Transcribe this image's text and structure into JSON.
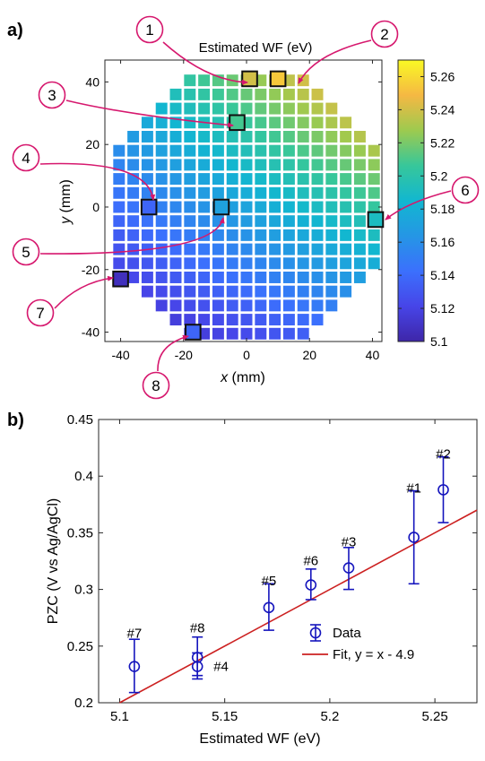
{
  "panel_a": {
    "label": "a)",
    "title": "Estimated WF (eV)",
    "xlabel_var": "x",
    "xlabel_unit": " (mm)",
    "ylabel_var": "y",
    "ylabel_unit": " (mm)",
    "xticks": [
      "-40",
      "-20",
      "0",
      "20",
      "40"
    ],
    "yticks": [
      "40",
      "20",
      "0",
      "-20",
      "-40"
    ],
    "colorbar_ticks": [
      "5.26",
      "5.24",
      "5.22",
      "5.2",
      "5.18",
      "5.16",
      "5.14",
      "5.12",
      "5.1"
    ],
    "callouts": [
      "1",
      "2",
      "3",
      "4",
      "5",
      "6",
      "7",
      "8"
    ]
  },
  "panel_b": {
    "label": "b)",
    "xlabel": "Estimated WF (eV)",
    "ylabel": "PZC (V vs Ag/AgCl)",
    "xticks": [
      "5.1",
      "5.15",
      "5.2",
      "5.25"
    ],
    "yticks": [
      "0.45",
      "0.4",
      "0.35",
      "0.3",
      "0.25",
      "0.2"
    ],
    "legend_data": "Data",
    "legend_fit": "Fit, y = x - 4.9"
  },
  "chart_data": [
    {
      "type": "heatmap",
      "title": "Estimated WF (eV)",
      "xlabel": "x (mm)",
      "ylabel": "y (mm)",
      "xlim": [
        -45,
        43
      ],
      "ylim": [
        -43,
        47
      ],
      "color_range": [
        5.1,
        5.27
      ],
      "colormap": "parula",
      "wafer_diameter_mm": 90,
      "pixel_pitch_mm": 4.5,
      "highlighted_sites": [
        {
          "label": "1",
          "x": 1,
          "y": 41,
          "value": 5.24
        },
        {
          "label": "2",
          "x": 10,
          "y": 41,
          "value": 5.254
        },
        {
          "label": "3",
          "x": -3,
          "y": 27,
          "value": 5.209
        },
        {
          "label": "4",
          "x": -31,
          "y": 0,
          "value": 5.137
        },
        {
          "label": "5",
          "x": -8,
          "y": 0,
          "value": 5.171
        },
        {
          "label": "6",
          "x": 41,
          "y": -4,
          "value": 5.191
        },
        {
          "label": "7",
          "x": -40,
          "y": -23,
          "value": 5.107
        },
        {
          "label": "8",
          "x": -17,
          "y": -40,
          "value": 5.137
        }
      ]
    },
    {
      "type": "scatter",
      "xlabel": "Estimated WF (eV)",
      "ylabel": "PZC (V vs Ag/AgCl)",
      "xlim": [
        5.09,
        5.27
      ],
      "ylim": [
        0.2,
        0.45
      ],
      "legend": "bottom-right",
      "series": [
        {
          "name": "Data",
          "color": "#1515bd",
          "points": [
            {
              "label": "#7",
              "x": 5.107,
              "y": 0.232,
              "err_low": 0.209,
              "err_high": 0.256
            },
            {
              "label": "#8",
              "x": 5.137,
              "y": 0.24,
              "err_low": 0.224,
              "err_high": 0.258
            },
            {
              "label": "#4",
              "x": 5.137,
              "y": 0.232,
              "err_low": 0.221,
              "err_high": 0.244
            },
            {
              "label": "#5",
              "x": 5.171,
              "y": 0.284,
              "err_low": 0.264,
              "err_high": 0.305
            },
            {
              "label": "#6",
              "x": 5.191,
              "y": 0.304,
              "err_low": 0.291,
              "err_high": 0.318
            },
            {
              "label": "#3",
              "x": 5.209,
              "y": 0.319,
              "err_low": 0.3,
              "err_high": 0.337
            },
            {
              "label": "#1",
              "x": 5.24,
              "y": 0.346,
              "err_low": 0.305,
              "err_high": 0.387
            },
            {
              "label": "#2",
              "x": 5.254,
              "y": 0.388,
              "err_low": 0.359,
              "err_high": 0.417
            }
          ]
        },
        {
          "name": "Fit, y = x - 4.9",
          "type": "line",
          "color": "#cc2020",
          "slope": 1,
          "intercept": -4.9
        }
      ]
    }
  ],
  "colors": {
    "callout": "#d6186e",
    "data": "#1515bd",
    "fit": "#cc2020"
  }
}
